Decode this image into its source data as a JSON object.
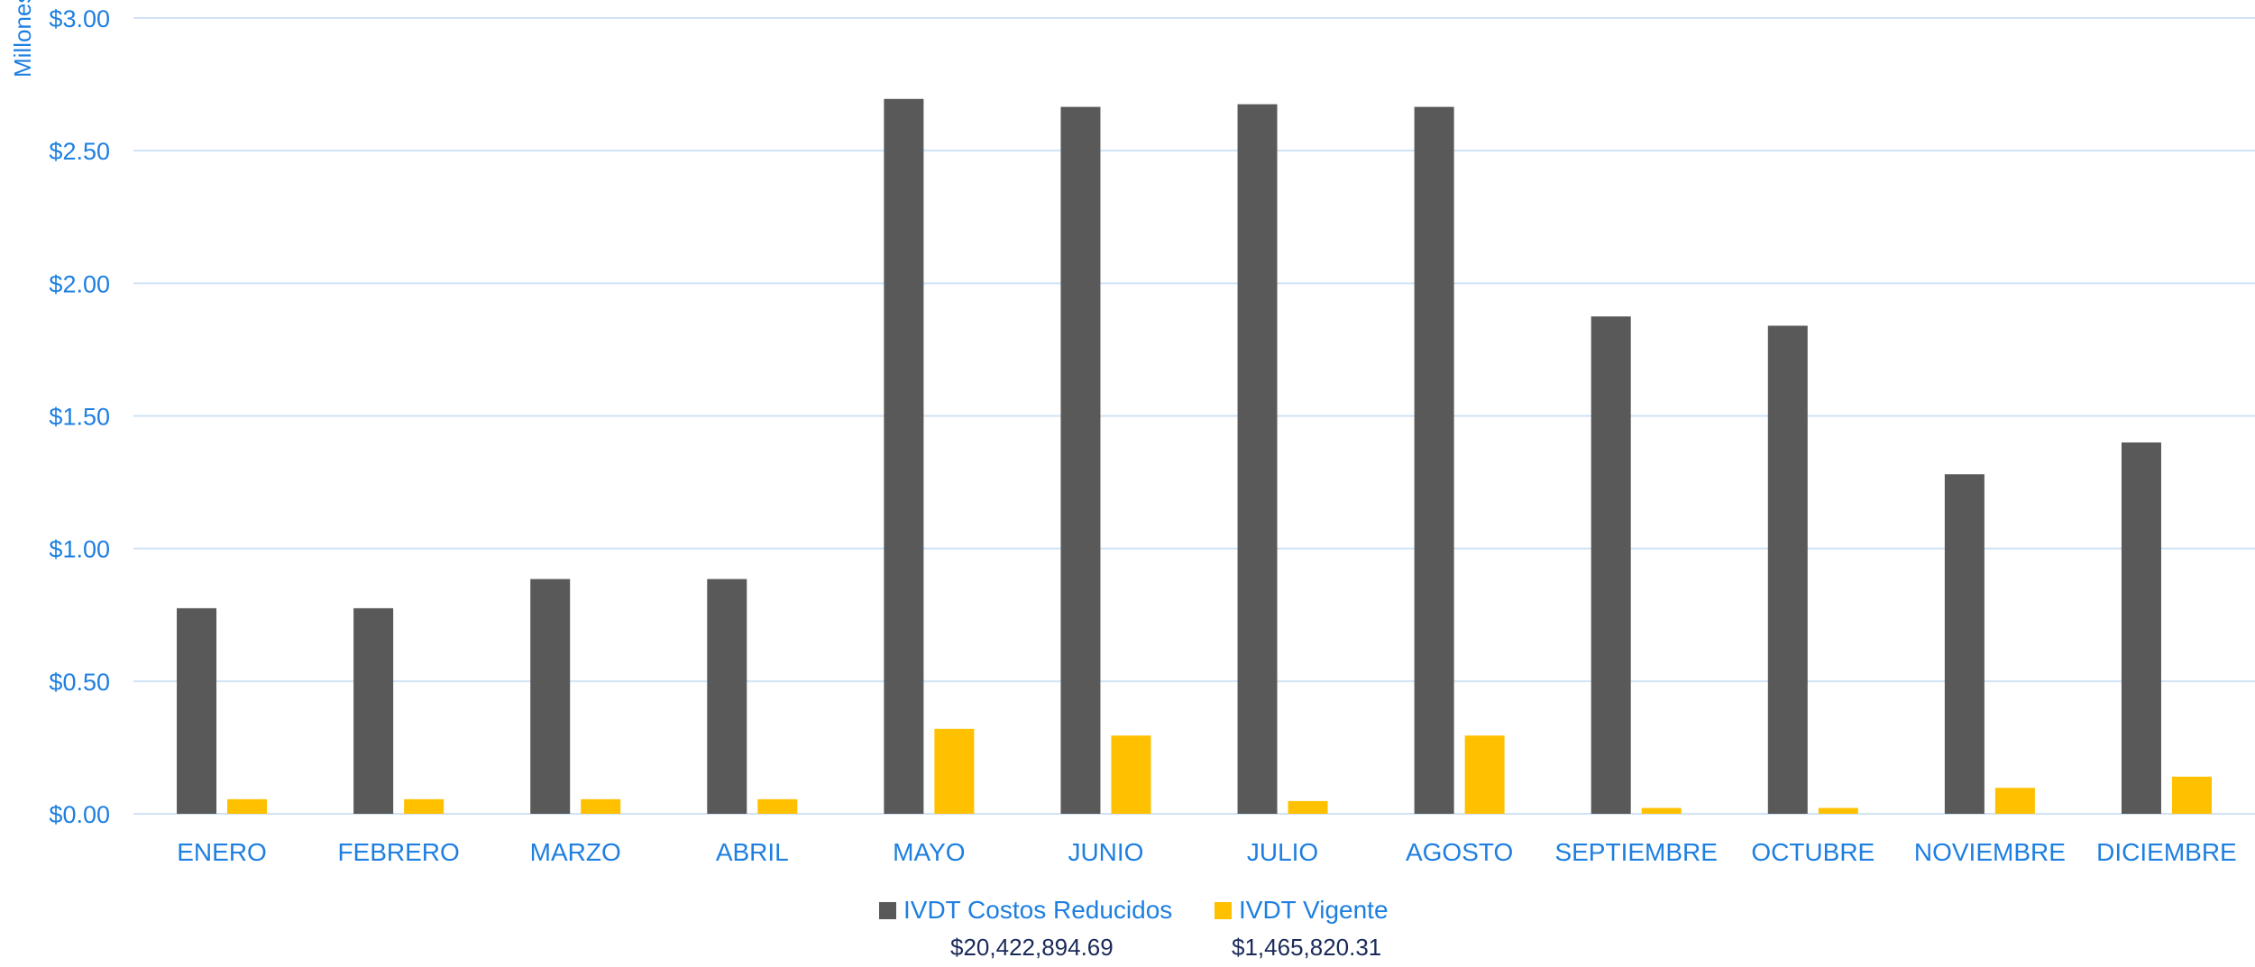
{
  "chart_data": {
    "type": "bar",
    "ylabel": "Millones",
    "ylim": [
      0,
      3.0
    ],
    "yticks": [
      "$0.00",
      "$0.50",
      "$1.00",
      "$1.50",
      "$2.00",
      "$2.50",
      "$3.00"
    ],
    "ytick_values": [
      0,
      0.5,
      1.0,
      1.5,
      2.0,
      2.5,
      3.0
    ],
    "grid": true,
    "legend_position": "bottom",
    "categories": [
      "ENERO",
      "FEBRERO",
      "MARZO",
      "ABRIL",
      "MAYO",
      "JUNIO",
      "JULIO",
      "AGOSTO",
      "SEPTIEMBRE",
      "OCTUBRE",
      "NOVIEMBRE",
      "DICIEMBRE"
    ],
    "series": [
      {
        "name": "IVDT Costos Reducidos",
        "color": "#595959",
        "total": "$20,422,894.69",
        "values": [
          0.775,
          0.775,
          0.885,
          0.885,
          2.695,
          2.665,
          2.675,
          2.665,
          1.875,
          1.84,
          1.28,
          1.4
        ]
      },
      {
        "name": "IVDT Vigente",
        "color": "#ffc000",
        "total": "$1,465,820.31",
        "values": [
          0.055,
          0.055,
          0.055,
          0.055,
          0.32,
          0.295,
          0.048,
          0.295,
          0.022,
          0.022,
          0.098,
          0.14
        ]
      }
    ]
  },
  "colors": {
    "axis_text": "#1e7fe0",
    "gridline": "#cfe3f5",
    "totals_text": "#1a2a5a"
  }
}
